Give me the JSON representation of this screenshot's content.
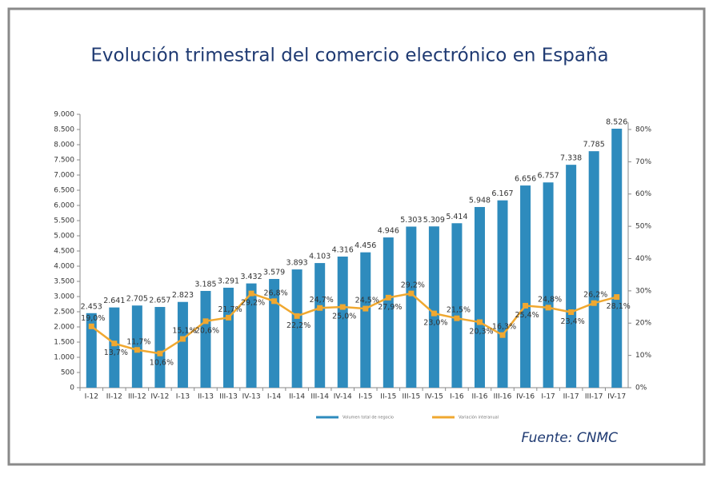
{
  "chart_data": {
    "type": "bar",
    "title": "Evolución trimestral del comercio electrónico en España",
    "source": "Fuente: CNMC",
    "categories": [
      "I-12",
      "II-12",
      "III-12",
      "IV-12",
      "I-13",
      "II-13",
      "III-13",
      "IV-13",
      "I-14",
      "II-14",
      "III-14",
      "IV-14",
      "I-15",
      "II-15",
      "III-15",
      "IV-15",
      "I-16",
      "II-16",
      "III-16",
      "IV-16",
      "I-17",
      "II-17",
      "III-17",
      "IV-17"
    ],
    "series": [
      {
        "name": "Volumen total de negocio",
        "type": "bar",
        "color": "#2e8bbd",
        "values": [
          2453,
          2641,
          2705,
          2657,
          2823,
          3185,
          3291,
          3432,
          3579,
          3893,
          4103,
          4316,
          4456,
          4946,
          5303,
          5309,
          5414,
          5948,
          6167,
          6656,
          6757,
          7338,
          7785,
          8526
        ],
        "value_labels": [
          "2.453",
          "2.641",
          "2.705",
          "2.657",
          "2.823",
          "3.185",
          "3.291",
          "3.432",
          "3.579",
          "3.893",
          "4.103",
          "4.316",
          "4.456",
          "4.946",
          "5.303",
          "5.309",
          "5.414",
          "5.948",
          "6.167",
          "6.656",
          "6.757",
          "7.338",
          "7.785",
          "8.526"
        ]
      },
      {
        "name": "Variación interanual",
        "type": "line",
        "axis": "y2",
        "color": "#f0a830",
        "values": [
          19.0,
          13.7,
          11.7,
          10.6,
          15.1,
          20.6,
          21.7,
          29.2,
          26.8,
          22.2,
          24.7,
          25.0,
          24.5,
          27.9,
          29.2,
          23.0,
          21.5,
          20.3,
          16.3,
          25.4,
          24.8,
          23.4,
          26.2,
          28.1
        ],
        "value_labels": [
          "19,0%",
          "13,7%",
          "11,7%",
          "10,6%",
          "15,1%",
          "20,6%",
          "21,7%",
          "29,2%",
          "26,8%",
          "22,2%",
          "24,7%",
          "25,0%",
          "24,5%",
          "27,9%",
          "29,2%",
          "23,0%",
          "21,5%",
          "20,3%",
          "16,3%",
          "25,4%",
          "24,8%",
          "23,4%",
          "26,2%",
          "28,1%"
        ]
      }
    ],
    "ylim": [
      0,
      9000
    ],
    "yticks": [
      0,
      500,
      {
        "value": 1000,
        "label": "1.000"
      },
      {
        "value": 1500,
        "label": "1.500"
      },
      {
        "value": 2000,
        "label": "2.000"
      },
      {
        "value": 2500,
        "label": "2.500"
      },
      {
        "value": 3000,
        "label": "3.000"
      },
      {
        "value": 3500,
        "label": "3.500"
      },
      {
        "value": 4000,
        "label": "4.000"
      },
      {
        "value": 4500,
        "label": "4.500"
      },
      {
        "value": 5000,
        "label": "5.000"
      },
      {
        "value": 5500,
        "label": "5.500"
      },
      {
        "value": 6000,
        "label": "6.000"
      },
      {
        "value": 6500,
        "label": "6.500"
      },
      {
        "value": 7000,
        "label": "7.000"
      },
      {
        "value": 7500,
        "label": "7.500"
      },
      {
        "value": 8000,
        "label": "8.000"
      },
      {
        "value": 8500,
        "label": "8.500"
      },
      {
        "value": 9000,
        "label": "9.000"
      }
    ],
    "y2lim": [
      0,
      84.7
    ],
    "y2ticks": [
      {
        "value": 0,
        "label": "0%"
      },
      {
        "value": 10,
        "label": "10%"
      },
      {
        "value": 20,
        "label": "20%"
      },
      {
        "value": 30,
        "label": "30%"
      },
      {
        "value": 40,
        "label": "40%"
      },
      {
        "value": 50,
        "label": "50%"
      },
      {
        "value": 60,
        "label": "60%"
      },
      {
        "value": 70,
        "label": "70%"
      },
      {
        "value": 80,
        "label": "80%"
      }
    ],
    "grid": false,
    "legend": "bottom"
  }
}
